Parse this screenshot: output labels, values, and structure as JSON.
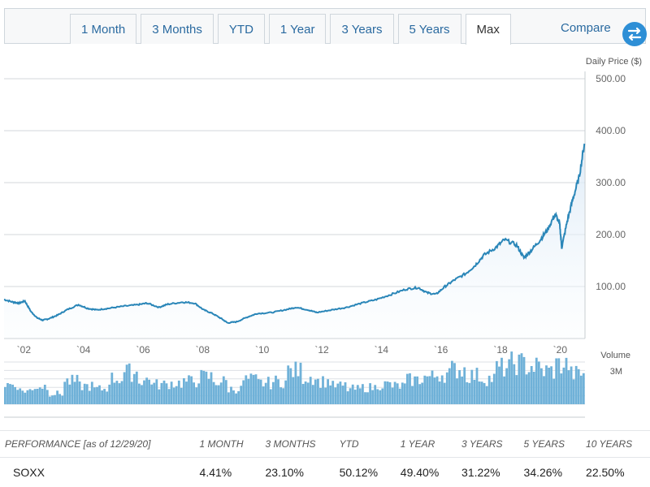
{
  "toolbar": {
    "tabs": [
      "1 Month",
      "3 Months",
      "YTD",
      "1 Year",
      "3 Years",
      "5 Years",
      "Max"
    ],
    "active_tab": "Max",
    "compare_label": "Compare",
    "compare_icon": "swap-arrows-icon",
    "accent_color": "#2e8fd6"
  },
  "chart_data": {
    "type": "area",
    "ylabel": "Daily Price ($)",
    "y_ticks": [
      "500.00",
      "400.00",
      "300.00",
      "200.00",
      "100.00"
    ],
    "ylim": [
      0,
      500
    ],
    "x_ticks": [
      "`02",
      "`04",
      "`06",
      "`08",
      "`10",
      "`12",
      "`14",
      "`16",
      "`18",
      "`20"
    ],
    "xlim": [
      2001.5,
      2021.0
    ],
    "price_series": {
      "x": [
        2001.5,
        2001.8,
        2002.0,
        2002.2,
        2002.4,
        2002.6,
        2002.8,
        2003.0,
        2003.3,
        2003.6,
        2004.0,
        2004.3,
        2004.6,
        2005.0,
        2005.5,
        2006.0,
        2006.3,
        2006.7,
        2007.0,
        2007.5,
        2007.9,
        2008.2,
        2008.5,
        2008.8,
        2009.0,
        2009.3,
        2009.7,
        2010.0,
        2010.5,
        2011.0,
        2011.3,
        2011.7,
        2012.0,
        2012.5,
        2013.0,
        2013.5,
        2014.0,
        2014.5,
        2015.0,
        2015.4,
        2015.7,
        2016.0,
        2016.3,
        2016.6,
        2017.0,
        2017.3,
        2017.6,
        2018.0,
        2018.3,
        2018.7,
        2018.95,
        2019.2,
        2019.5,
        2019.75,
        2020.0,
        2020.15,
        2020.22,
        2020.4,
        2020.6,
        2020.8,
        2020.98
      ],
      "values": [
        75,
        70,
        68,
        72,
        52,
        40,
        35,
        38,
        45,
        55,
        65,
        58,
        55,
        58,
        62,
        65,
        68,
        60,
        66,
        70,
        68,
        55,
        48,
        38,
        30,
        32,
        42,
        48,
        50,
        56,
        60,
        55,
        50,
        55,
        60,
        68,
        75,
        85,
        95,
        98,
        88,
        85,
        100,
        112,
        125,
        140,
        160,
        175,
        190,
        180,
        155,
        170,
        190,
        210,
        240,
        220,
        175,
        225,
        270,
        310,
        375
      ]
    },
    "volume": {
      "label": "Volume",
      "tick": "3M",
      "x": [
        2001.5,
        2002.0,
        2002.5,
        2003.0,
        2003.5,
        2004.0,
        2004.5,
        2005.0,
        2005.5,
        2006.0,
        2006.5,
        2007.0,
        2007.5,
        2008.0,
        2008.5,
        2009.0,
        2009.5,
        2010.0,
        2010.5,
        2011.0,
        2011.5,
        2012.0,
        2012.5,
        2013.0,
        2013.5,
        2014.0,
        2014.5,
        2015.0,
        2015.5,
        2016.0,
        2016.5,
        2017.0,
        2017.5,
        2018.0,
        2018.5,
        2019.0,
        2019.5,
        2020.0,
        2020.5
      ],
      "values": [
        1.3,
        0.9,
        1.2,
        0.7,
        1.5,
        1.2,
        1.0,
        1.7,
        2.1,
        1.6,
        1.3,
        1.4,
        1.5,
        1.8,
        1.5,
        1.0,
        1.6,
        1.4,
        1.5,
        2.2,
        1.8,
        1.5,
        1.2,
        1.0,
        1.1,
        1.3,
        1.2,
        1.6,
        1.8,
        2.0,
        2.3,
        1.9,
        1.7,
        2.4,
        2.7,
        2.5,
        2.2,
        2.6,
        2.0
      ],
      "ylim": [
        0,
        3
      ],
      "color": "#6fb1d8"
    },
    "line_color": "#2a86b8",
    "grid": true
  },
  "performance": {
    "header": [
      "PERFORMANCE [as of 12/29/20]",
      "1 MONTH",
      "3 MONTHS",
      "YTD",
      "1 YEAR",
      "3 YEARS",
      "5 YEARS",
      "10 YEARS"
    ],
    "rows": [
      [
        "SOXX",
        "4.41%",
        "23.10%",
        "50.12%",
        "49.40%",
        "31.22%",
        "34.26%",
        "22.50%"
      ]
    ]
  }
}
